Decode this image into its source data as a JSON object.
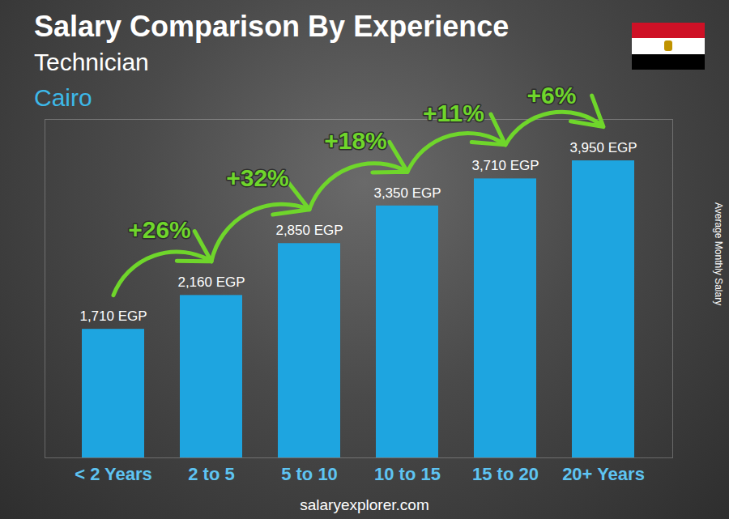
{
  "chart_data": {
    "type": "bar",
    "title": "Salary Comparison By Experience",
    "subtitle": "Technician",
    "location": "Cairo",
    "y_label": "Average Monthly Salary",
    "source": "salaryexplorer.com",
    "categories": [
      "< 2 Years",
      "2 to 5",
      "5 to 10",
      "10 to 15",
      "15 to 20",
      "20+ Years"
    ],
    "values": [
      1710,
      2160,
      2850,
      3350,
      3710,
      3950
    ],
    "value_labels": [
      "1,710 EGP",
      "2,160 EGP",
      "2,850 EGP",
      "3,350 EGP",
      "3,710 EGP",
      "3,950 EGP"
    ],
    "annotations": [
      "+26%",
      "+32%",
      "+18%",
      "+11%",
      "+6%"
    ],
    "color": "#1ea5e0",
    "ylim": [
      0,
      4500
    ],
    "grid": false,
    "data_labels": true,
    "tick_labels": "x"
  }
}
